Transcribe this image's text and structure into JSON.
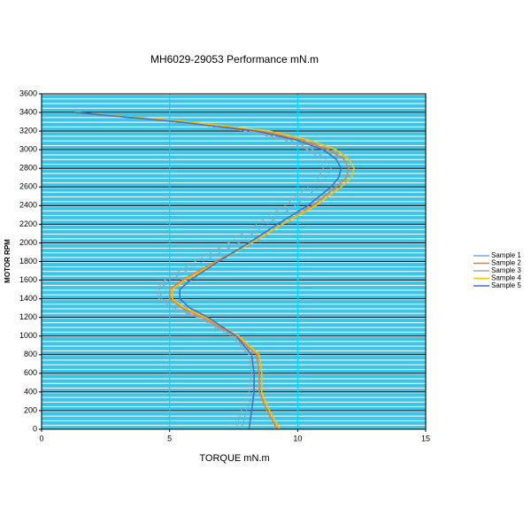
{
  "chart_data": {
    "type": "line",
    "title": "MH6029-29053  Performance mN.m",
    "x_label": "TORQUE mN.m",
    "y_label": "MOTOR RPM",
    "xlim": [
      0,
      15
    ],
    "xticks": [
      0,
      5,
      10,
      15
    ],
    "ylim": [
      0,
      3600
    ],
    "yticks": [
      0,
      200,
      400,
      600,
      800,
      1000,
      1200,
      1400,
      1600,
      1800,
      2000,
      2200,
      2400,
      2600,
      2800,
      3000,
      3200,
      3400,
      3600
    ],
    "grid": true,
    "legend": "right",
    "series": [
      {
        "name": "Sample 1",
        "color": "#6fa8dc",
        "dash": true,
        "x": [
          1.3,
          5.2,
          8.2,
          9.7,
          10.6,
          11.1,
          11.3,
          11.1,
          10.8,
          9.9,
          8.8,
          7.7,
          6.3,
          5.0,
          4.6,
          4.7,
          5.2,
          6.2,
          7.5,
          8.2,
          8.3,
          8.3,
          8.0,
          7.8
        ],
        "values": [
          3400,
          3300,
          3200,
          3100,
          3000,
          2900,
          2800,
          2700,
          2600,
          2400,
          2200,
          2000,
          1800,
          1600,
          1500,
          1400,
          1300,
          1200,
          1000,
          800,
          600,
          400,
          200,
          0
        ]
      },
      {
        "name": "Sample 2",
        "color": "#ed7d31",
        "dash": false,
        "x": [
          1.3,
          5.5,
          8.6,
          10.2,
          11.2,
          11.8,
          12.0,
          11.9,
          11.5,
          10.6,
          9.4,
          8.2,
          6.8,
          5.5,
          5.0,
          5.0,
          5.5,
          6.3,
          7.6,
          8.4,
          8.5,
          8.5,
          8.8,
          9.2
        ],
        "values": [
          3400,
          3300,
          3200,
          3100,
          3000,
          2900,
          2800,
          2700,
          2600,
          2400,
          2200,
          2000,
          1800,
          1600,
          1500,
          1400,
          1300,
          1200,
          1000,
          800,
          600,
          400,
          200,
          0
        ]
      },
      {
        "name": "Sample 3",
        "color": "#a5a5a5",
        "dash": true,
        "x": [
          1.3,
          5.1,
          8.0,
          9.5,
          10.4,
          10.9,
          11.0,
          10.8,
          10.4,
          9.5,
          8.4,
          7.3,
          6.0,
          4.8,
          4.5,
          4.6,
          5.1,
          6.1,
          7.4,
          8.1,
          8.2,
          8.1,
          7.8,
          7.6
        ],
        "values": [
          3400,
          3300,
          3200,
          3100,
          3000,
          2900,
          2800,
          2700,
          2600,
          2400,
          2200,
          2000,
          1800,
          1600,
          1500,
          1400,
          1300,
          1200,
          1000,
          800,
          600,
          400,
          200,
          0
        ]
      },
      {
        "name": "Sample 4",
        "color": "#ffc000",
        "dash": false,
        "x": [
          1.3,
          5.7,
          8.9,
          10.5,
          11.5,
          12.0,
          12.2,
          12.1,
          11.7,
          10.7,
          9.4,
          8.2,
          6.9,
          5.6,
          5.1,
          5.1,
          5.6,
          6.4,
          7.7,
          8.5,
          8.6,
          8.6,
          8.9,
          9.3
        ],
        "values": [
          3400,
          3300,
          3200,
          3100,
          3000,
          2900,
          2800,
          2700,
          2600,
          2400,
          2200,
          2000,
          1800,
          1600,
          1500,
          1400,
          1300,
          1200,
          1000,
          800,
          600,
          400,
          200,
          0
        ]
      },
      {
        "name": "Sample 5",
        "color": "#4472c4",
        "dash": false,
        "x": [
          1.3,
          5.3,
          8.4,
          10.0,
          11.0,
          11.5,
          11.7,
          11.6,
          11.3,
          10.4,
          9.2,
          8.1,
          6.9,
          5.8,
          5.4,
          5.4,
          5.8,
          6.5,
          7.6,
          8.2,
          8.3,
          8.3,
          8.2,
          8.1
        ],
        "values": [
          3400,
          3300,
          3200,
          3100,
          3000,
          2900,
          2800,
          2700,
          2600,
          2400,
          2200,
          2000,
          1800,
          1600,
          1500,
          1400,
          1300,
          1200,
          1000,
          800,
          600,
          400,
          200,
          0
        ]
      }
    ]
  }
}
